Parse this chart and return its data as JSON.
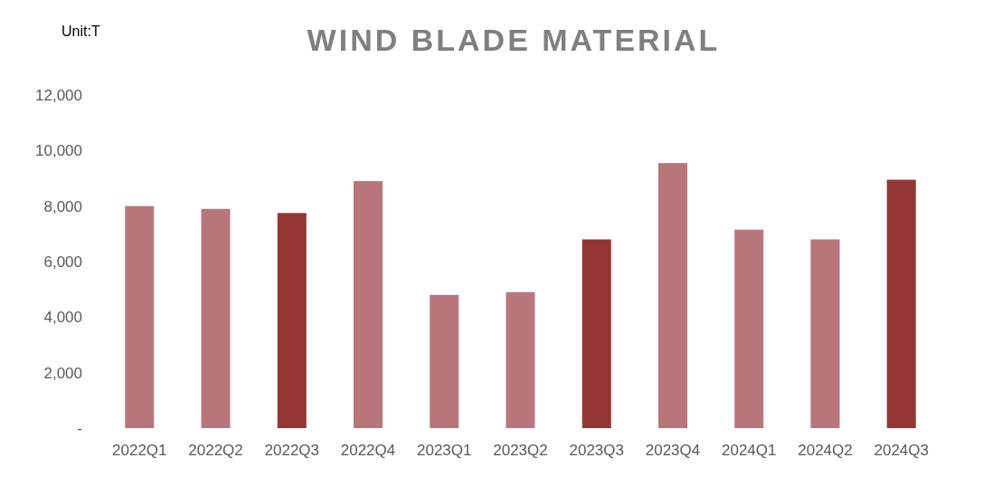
{
  "chart_data": {
    "type": "bar",
    "title": "WIND BLADE MATERIAL",
    "ylabel": "Unit:T",
    "categories": [
      "2022Q1",
      "2022Q2",
      "2022Q3",
      "2022Q4",
      "2023Q1",
      "2023Q2",
      "2023Q3",
      "2023Q4",
      "2024Q1",
      "2024Q2",
      "2024Q3"
    ],
    "values": [
      8000,
      7900,
      7750,
      8900,
      4800,
      4900,
      6800,
      9550,
      7150,
      6800,
      8950
    ],
    "colors": [
      "#b9767a",
      "#b9767a",
      "#943634",
      "#b9767a",
      "#b9767a",
      "#b9767a",
      "#943634",
      "#b9767a",
      "#b9767a",
      "#b9767a",
      "#943634"
    ],
    "ylim": [
      0,
      12000
    ],
    "yticks": [
      {
        "value": 0,
        "label": "-"
      },
      {
        "value": 2000,
        "label": "2,000"
      },
      {
        "value": 4000,
        "label": "4,000"
      },
      {
        "value": 6000,
        "label": "6,000"
      },
      {
        "value": 8000,
        "label": "8,000"
      },
      {
        "value": 10000,
        "label": "10,000"
      },
      {
        "value": 12000,
        "label": "12,000"
      }
    ],
    "grid": false
  }
}
